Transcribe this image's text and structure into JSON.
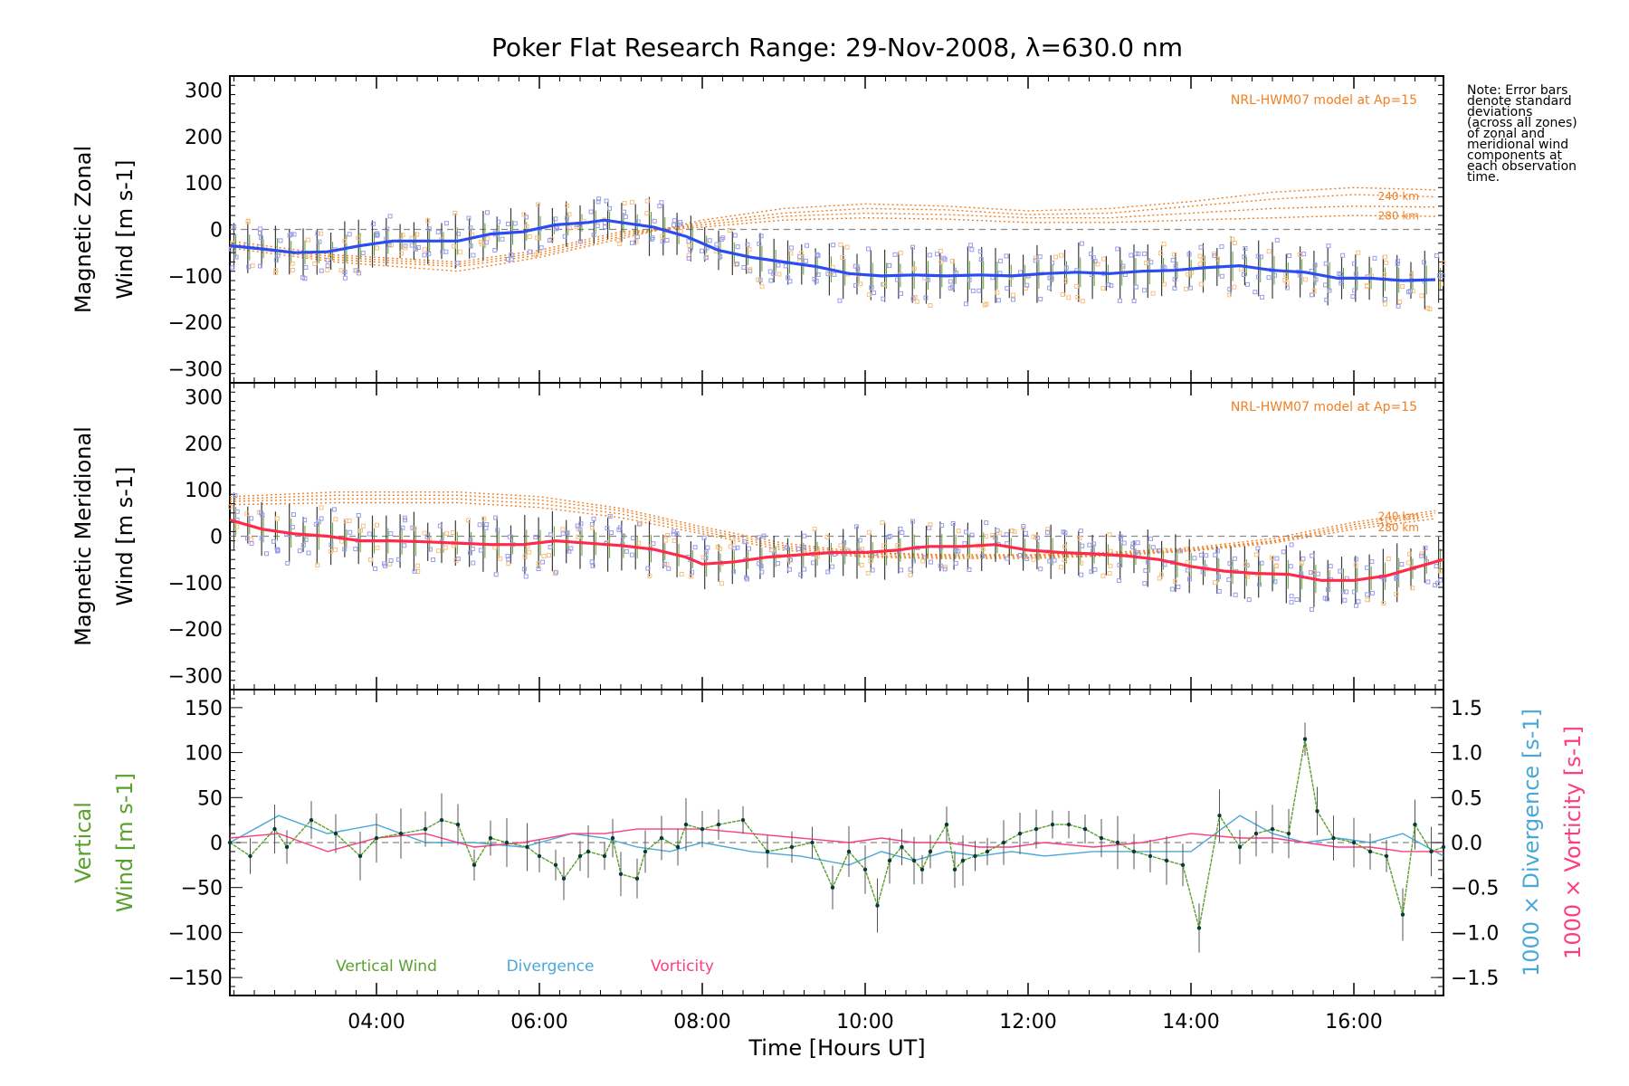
{
  "title": "Poker Flat Research Range: 29-Nov-2008, λ=630.0 nm",
  "note": "Note: Error bars\ndenote standard\ndeviations\n(across all zones)\nof zonal and\nmeridional wind\ncomponents at\neach observation\ntime.",
  "x_axis": {
    "label": "Time [Hours UT]",
    "range_hours": [
      2.2,
      17.1
    ],
    "ticks": [
      4,
      6,
      8,
      10,
      12,
      14,
      16
    ],
    "tick_labels": [
      "04:00",
      "06:00",
      "08:00",
      "10:00",
      "12:00",
      "14:00",
      "16:00"
    ]
  },
  "colors": {
    "zonal_line": "#2b4cf0",
    "meridional_line": "#ff2a4a",
    "vertical_wind": "#5aa02c",
    "divergence": "#4aa8d8",
    "vorticity": "#ff3c82",
    "model": "#f07f22",
    "zone_samples": "#9a9ce8",
    "zone_samples_light": "#f8c080"
  },
  "chart_data": [
    {
      "type": "line",
      "panel": "zonal",
      "ylabel_line1": "Magnetic Zonal",
      "ylabel_line2": "Wind [m s-1]",
      "ylim": [
        -330,
        330
      ],
      "y_ticks": [
        -300,
        -200,
        -100,
        0,
        100,
        200,
        300
      ],
      "y_tick_labels": [
        "−300",
        "−200",
        "−100",
        "0",
        "100",
        "200",
        "300"
      ],
      "model_label": "NRL-HWM07 model at Ap=15",
      "model_alt_labels": [
        "240 km",
        "280 km"
      ],
      "series": [
        {
          "x": [
            2.2,
            2.6,
            3.0,
            3.4,
            3.8,
            4.2,
            4.6,
            5.0,
            5.4,
            5.8,
            6.2,
            6.6,
            6.8,
            7.0,
            7.4,
            7.8,
            8.2,
            8.6,
            9.0,
            9.4,
            9.8,
            10.2,
            10.6,
            11.0,
            11.4,
            11.8,
            12.2,
            12.6,
            13.0,
            13.4,
            13.8,
            14.2,
            14.6,
            15.0,
            15.4,
            15.8,
            16.2,
            16.6,
            17.0
          ],
          "y": [
            -35,
            -42,
            -50,
            -48,
            -35,
            -25,
            -25,
            -25,
            -10,
            -5,
            10,
            15,
            20,
            15,
            5,
            -15,
            -45,
            -60,
            -70,
            -80,
            -95,
            -100,
            -98,
            -100,
            -98,
            -100,
            -95,
            -92,
            -95,
            -90,
            -88,
            -82,
            -78,
            -88,
            -92,
            -105,
            -105,
            -110,
            -108
          ]
        }
      ],
      "model_curves": [
        {
          "x": [
            2.2,
            3.5,
            5.0,
            6.0,
            7.0,
            8.0,
            9.0,
            10.0,
            11.0,
            12.0,
            13.0,
            14.0,
            15.0,
            16.0,
            17.0
          ],
          "y": [
            -40,
            -70,
            -90,
            -60,
            -20,
            20,
            45,
            55,
            50,
            40,
            45,
            60,
            80,
            90,
            85
          ]
        },
        {
          "x": [
            2.2,
            3.5,
            5.0,
            6.0,
            7.0,
            8.0,
            9.0,
            10.0,
            11.0,
            12.0,
            13.0,
            14.0,
            15.0,
            16.0,
            17.0
          ],
          "y": [
            -35,
            -65,
            -80,
            -55,
            -15,
            15,
            35,
            45,
            42,
            32,
            35,
            50,
            65,
            75,
            70
          ]
        },
        {
          "x": [
            2.2,
            3.5,
            5.0,
            6.0,
            7.0,
            8.0,
            9.0,
            10.0,
            11.0,
            12.0,
            13.0,
            14.0,
            15.0,
            16.0,
            17.0
          ],
          "y": [
            -30,
            -60,
            -75,
            -50,
            -10,
            10,
            28,
            35,
            32,
            25,
            25,
            35,
            45,
            50,
            48
          ]
        },
        {
          "x": [
            2.2,
            3.5,
            5.0,
            6.0,
            7.0,
            8.0,
            9.0,
            10.0,
            11.0,
            12.0,
            13.0,
            14.0,
            15.0,
            16.0,
            17.0
          ],
          "y": [
            -25,
            -55,
            -70,
            -45,
            -5,
            5,
            20,
            25,
            22,
            15,
            15,
            20,
            25,
            30,
            28
          ]
        }
      ]
    },
    {
      "type": "line",
      "panel": "meridional",
      "ylabel_line1": "Magnetic Meridional",
      "ylabel_line2": "Wind [m s-1]",
      "ylim": [
        -330,
        330
      ],
      "y_ticks": [
        -300,
        -200,
        -100,
        0,
        100,
        200,
        300
      ],
      "y_tick_labels": [
        "−300",
        "−200",
        "−100",
        "0",
        "100",
        "200",
        "300"
      ],
      "model_label": "NRL-HWM07 model at Ap=15",
      "model_alt_labels": [
        "240 km",
        "280 km"
      ],
      "series": [
        {
          "x": [
            2.2,
            2.6,
            3.0,
            3.4,
            3.8,
            4.2,
            4.6,
            5.0,
            5.4,
            5.8,
            6.2,
            6.6,
            7.0,
            7.4,
            7.8,
            8.0,
            8.4,
            8.8,
            9.2,
            9.6,
            10.0,
            10.4,
            10.6,
            10.8,
            11.2,
            11.6,
            12.0,
            12.4,
            12.8,
            13.2,
            13.6,
            14.0,
            14.4,
            14.8,
            15.2,
            15.6,
            16.0,
            16.4,
            16.8,
            17.1
          ],
          "y": [
            35,
            15,
            5,
            0,
            -10,
            -10,
            -12,
            -15,
            -18,
            -18,
            -10,
            -15,
            -20,
            -28,
            -45,
            -60,
            -55,
            -45,
            -40,
            -35,
            -35,
            -30,
            -25,
            -22,
            -22,
            -18,
            -30,
            -35,
            -38,
            -42,
            -50,
            -65,
            -75,
            -80,
            -82,
            -95,
            -95,
            -85,
            -65,
            -50
          ]
        }
      ],
      "model_curves": [
        {
          "x": [
            2.2,
            3.5,
            5.0,
            6.0,
            7.0,
            8.0,
            9.0,
            10.0,
            11.0,
            12.0,
            13.0,
            14.0,
            15.0,
            16.0,
            17.0
          ],
          "y": [
            85,
            95,
            95,
            85,
            60,
            20,
            -15,
            -35,
            -40,
            -40,
            -35,
            -25,
            -5,
            30,
            55
          ]
        },
        {
          "x": [
            2.2,
            3.5,
            5.0,
            6.0,
            7.0,
            8.0,
            9.0,
            10.0,
            11.0,
            12.0,
            13.0,
            14.0,
            15.0,
            16.0,
            17.0
          ],
          "y": [
            80,
            88,
            88,
            78,
            55,
            15,
            -20,
            -38,
            -42,
            -42,
            -38,
            -28,
            -10,
            25,
            50
          ]
        },
        {
          "x": [
            2.2,
            3.5,
            5.0,
            6.0,
            7.0,
            8.0,
            9.0,
            10.0,
            11.0,
            12.0,
            13.0,
            14.0,
            15.0,
            16.0,
            17.0
          ],
          "y": [
            75,
            80,
            80,
            70,
            48,
            10,
            -25,
            -42,
            -45,
            -45,
            -40,
            -30,
            -12,
            20,
            45
          ]
        },
        {
          "x": [
            2.2,
            3.5,
            5.0,
            6.0,
            7.0,
            8.0,
            9.0,
            10.0,
            11.0,
            12.0,
            13.0,
            14.0,
            15.0,
            16.0,
            17.0
          ],
          "y": [
            68,
            72,
            72,
            62,
            40,
            5,
            -30,
            -45,
            -48,
            -48,
            -42,
            -32,
            -15,
            15,
            38
          ]
        }
      ]
    },
    {
      "type": "line",
      "panel": "vertical",
      "ylabel_line1": "Vertical",
      "ylabel_line2": "Wind [m s-1]",
      "ylim": [
        -170,
        170
      ],
      "y_ticks": [
        -150,
        -100,
        -50,
        0,
        50,
        100,
        150
      ],
      "y_tick_labels": [
        "−150",
        "−100",
        "−50",
        "0",
        "50",
        "100",
        "150"
      ],
      "y2_label_divergence": "1000 × Divergence [s-1]",
      "y2_label_vorticity": "1000 × Vorticity [s-1]",
      "y2_ticks": [
        -1.5,
        -1.0,
        -0.5,
        0.0,
        0.5,
        1.0,
        1.5
      ],
      "y2_tick_labels": [
        "−1.5",
        "−1.0",
        "−0.5",
        "0.0",
        "0.5",
        "1.0",
        "1.5"
      ],
      "legend": [
        "Vertical Wind",
        "Divergence",
        "Vorticity"
      ],
      "series": [
        {
          "name": "Vertical Wind",
          "x": [
            2.2,
            2.45,
            2.75,
            2.9,
            3.2,
            3.5,
            3.8,
            4.0,
            4.3,
            4.6,
            4.8,
            5.0,
            5.2,
            5.4,
            5.6,
            5.85,
            6.0,
            6.2,
            6.3,
            6.5,
            6.6,
            6.8,
            6.9,
            7.0,
            7.2,
            7.3,
            7.5,
            7.7,
            7.8,
            8.0,
            8.2,
            8.5,
            8.8,
            9.1,
            9.35,
            9.6,
            9.8,
            10.0,
            10.15,
            10.3,
            10.45,
            10.6,
            10.7,
            10.8,
            11.0,
            11.1,
            11.2,
            11.35,
            11.5,
            11.7,
            11.9,
            12.1,
            12.3,
            12.5,
            12.7,
            12.9,
            13.1,
            13.3,
            13.5,
            13.7,
            13.9,
            14.1,
            14.35,
            14.6,
            14.8,
            15.0,
            15.2,
            15.4,
            15.55,
            15.75,
            16.0,
            16.2,
            16.4,
            16.6,
            16.75,
            16.95,
            17.1
          ],
          "y": [
            0,
            -15,
            15,
            -5,
            25,
            10,
            -15,
            5,
            10,
            15,
            25,
            20,
            -25,
            5,
            0,
            -5,
            -15,
            -25,
            -40,
            -15,
            -10,
            -15,
            5,
            -35,
            -40,
            -10,
            5,
            -5,
            20,
            15,
            20,
            25,
            -10,
            -5,
            0,
            -50,
            -10,
            -30,
            -70,
            -20,
            -5,
            -20,
            -30,
            -10,
            20,
            -30,
            -20,
            -15,
            -10,
            0,
            10,
            15,
            20,
            20,
            15,
            5,
            0,
            -10,
            -15,
            -20,
            -25,
            -95,
            30,
            -5,
            10,
            15,
            10,
            115,
            35,
            5,
            0,
            -10,
            -15,
            -80,
            20,
            -10,
            -5
          ]
        },
        {
          "name": "Divergence",
          "x": [
            2.2,
            2.8,
            3.4,
            4.0,
            4.6,
            5.2,
            5.8,
            6.4,
            6.8,
            7.2,
            7.6,
            8.0,
            8.6,
            9.2,
            9.8,
            10.2,
            10.6,
            11.0,
            11.4,
            11.8,
            12.2,
            12.8,
            13.4,
            14.0,
            14.6,
            15.0,
            15.4,
            15.8,
            16.2,
            16.6,
            17.1
          ],
          "y": [
            0.0,
            0.3,
            0.1,
            0.2,
            0.0,
            0.0,
            -0.05,
            0.1,
            0.05,
            -0.05,
            -0.1,
            0.0,
            -0.1,
            -0.15,
            -0.25,
            -0.1,
            -0.2,
            -0.1,
            -0.15,
            -0.1,
            -0.15,
            -0.1,
            -0.1,
            -0.1,
            0.3,
            0.1,
            0.0,
            0.05,
            0.0,
            0.1,
            -0.15
          ]
        },
        {
          "name": "Vorticity",
          "x": [
            2.2,
            2.8,
            3.4,
            4.0,
            4.6,
            5.2,
            5.8,
            6.4,
            6.8,
            7.2,
            7.6,
            8.0,
            8.6,
            9.2,
            9.8,
            10.2,
            10.6,
            11.0,
            11.4,
            11.8,
            12.2,
            12.8,
            13.4,
            14.0,
            14.6,
            15.0,
            15.4,
            15.8,
            16.2,
            16.6,
            17.1
          ],
          "y": [
            0.05,
            0.1,
            -0.1,
            0.05,
            0.1,
            -0.05,
            0.0,
            0.1,
            0.1,
            0.15,
            0.15,
            0.15,
            0.1,
            0.05,
            0.0,
            0.05,
            0.0,
            0.0,
            -0.05,
            -0.05,
            0.0,
            -0.05,
            0.0,
            0.1,
            0.05,
            0.05,
            0.0,
            -0.05,
            -0.05,
            -0.1,
            -0.1
          ]
        }
      ]
    }
  ]
}
